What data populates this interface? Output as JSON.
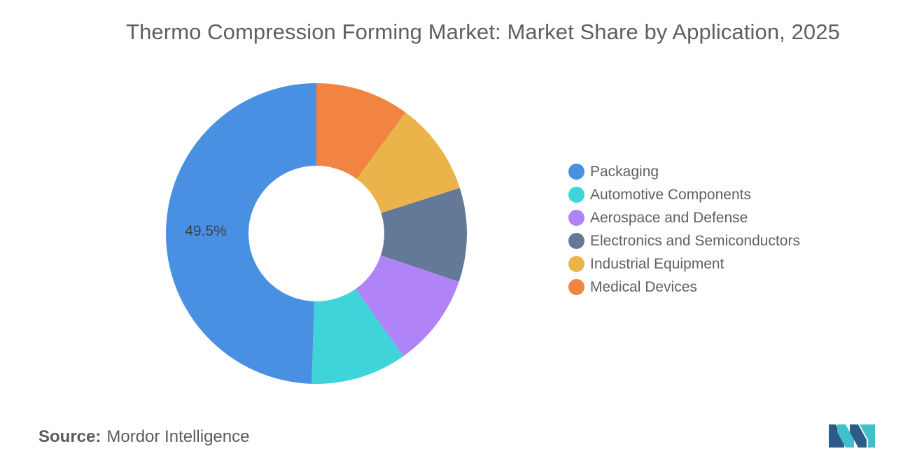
{
  "title": "Thermo Compression Forming Market: Market Share by Application, 2025",
  "source": {
    "label": "Source:",
    "value": "Mordor Intelligence"
  },
  "chart_data": {
    "type": "pie",
    "style": "donut",
    "title": "Thermo Compression Forming Market: Market Share by Application, 2025",
    "legend_position": "right",
    "categories": [
      "Packaging",
      "Automotive Components",
      "Aerospace and Defense",
      "Electronics and Semiconductors",
      "Industrial Equipment",
      "Medical Devices"
    ],
    "values": [
      49.5,
      10.3,
      10.0,
      10.1,
      10.0,
      10.1
    ],
    "colors": [
      "#4a90e2",
      "#3fd3da",
      "#b084f7",
      "#647897",
      "#ebb44a",
      "#f18443"
    ],
    "data_labels": [
      {
        "category": "Packaging",
        "text": "49.5%"
      }
    ]
  }
}
